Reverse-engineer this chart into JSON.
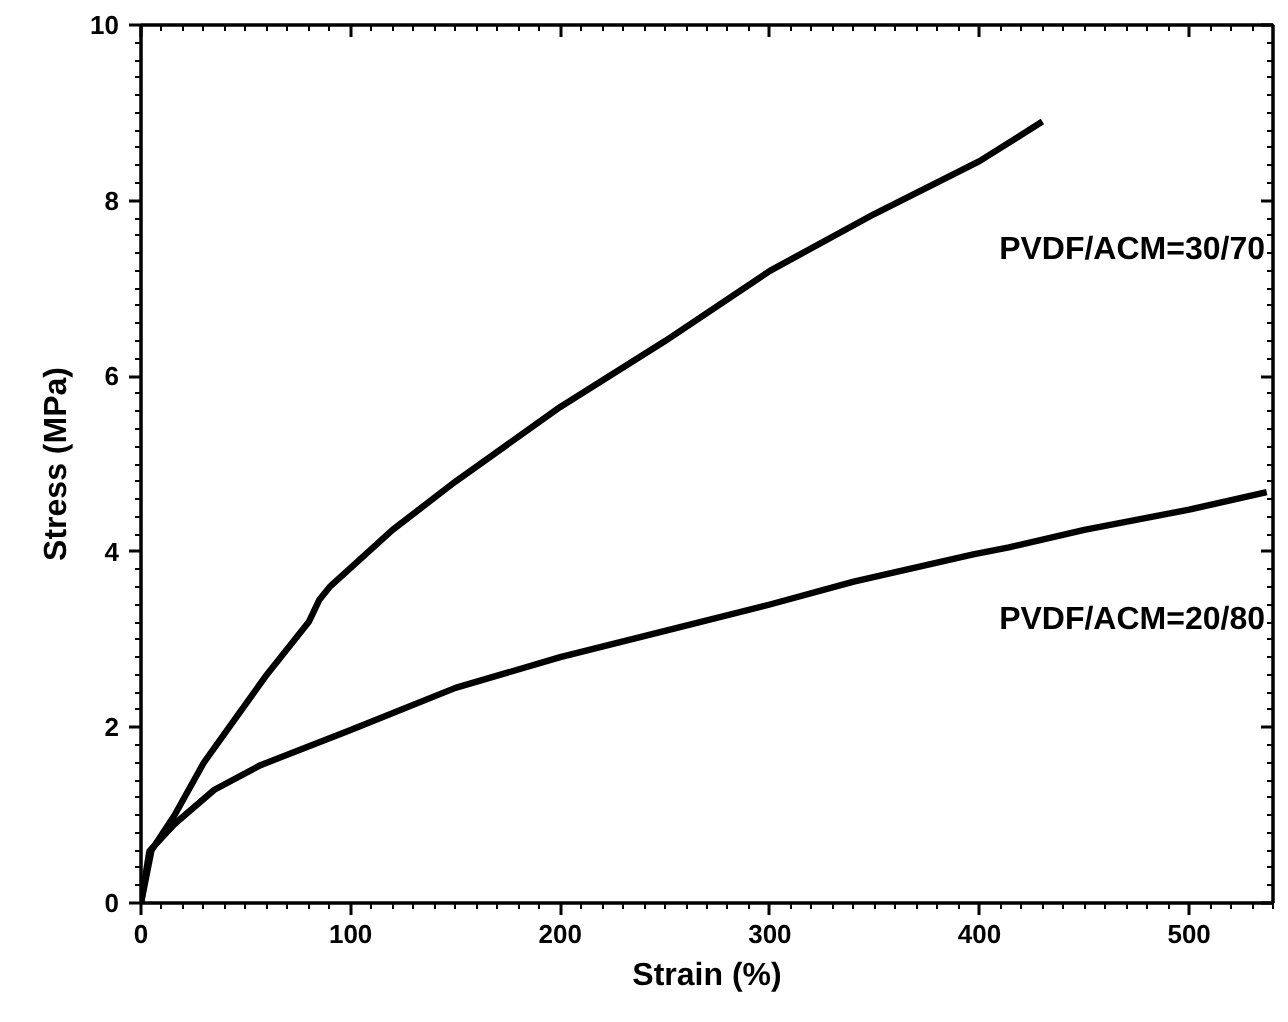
{
  "chart_data": {
    "type": "line",
    "xlabel": "Strain (%)",
    "ylabel": "Stress (MPa)",
    "xlim": [
      0,
      540
    ],
    "ylim": [
      0,
      10
    ],
    "xticks": [
      0,
      100,
      200,
      300,
      400,
      500
    ],
    "yticks": [
      0,
      2,
      4,
      6,
      8,
      10
    ],
    "grid": false,
    "legend": "right",
    "marker": "none",
    "line_style": "solid",
    "series": [
      {
        "name": "PVDF/ACM=30/70",
        "color": "#000000",
        "x": [
          0,
          5,
          16,
          30,
          42,
          60,
          80,
          85,
          90,
          120,
          150,
          200,
          250,
          300,
          350,
          400,
          430
        ],
        "values": [
          0,
          0.6,
          1.0,
          1.6,
          2.0,
          2.6,
          3.2,
          3.45,
          3.6,
          4.25,
          4.8,
          5.65,
          6.4,
          7.2,
          7.85,
          8.45,
          8.9
        ]
      },
      {
        "name": "PVDF/ACM=20/80",
        "color": "#000000",
        "x": [
          0,
          4,
          16,
          35,
          57,
          100,
          150,
          200,
          250,
          300,
          340,
          397,
          414,
          450,
          500,
          537
        ],
        "values": [
          0,
          0.59,
          0.9,
          1.29,
          1.57,
          1.97,
          2.45,
          2.8,
          3.1,
          3.4,
          3.66,
          3.97,
          4.05,
          4.25,
          4.48,
          4.68
        ]
      }
    ]
  }
}
